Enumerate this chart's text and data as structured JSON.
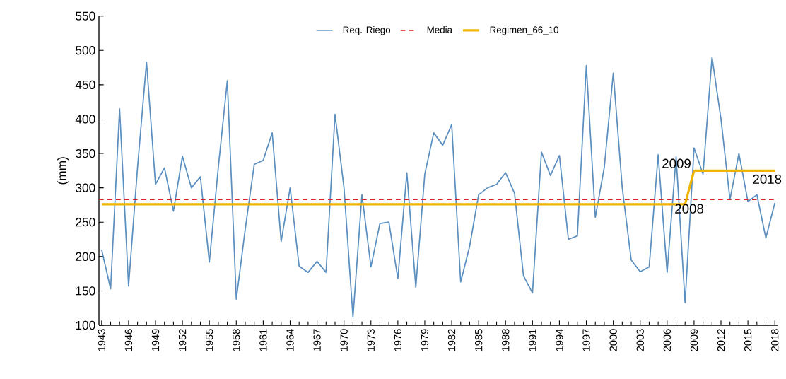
{
  "chart_data": {
    "type": "line",
    "ylabel": "(mm)",
    "x": [
      1943,
      1944,
      1945,
      1946,
      1947,
      1948,
      1949,
      1950,
      1951,
      1952,
      1953,
      1954,
      1955,
      1956,
      1957,
      1958,
      1959,
      1960,
      1961,
      1962,
      1963,
      1964,
      1965,
      1966,
      1967,
      1968,
      1969,
      1970,
      1971,
      1972,
      1973,
      1974,
      1975,
      1976,
      1977,
      1978,
      1979,
      1980,
      1981,
      1982,
      1983,
      1984,
      1985,
      1986,
      1987,
      1988,
      1989,
      1990,
      1991,
      1992,
      1993,
      1994,
      1995,
      1996,
      1997,
      1998,
      1999,
      2000,
      2001,
      2002,
      2003,
      2004,
      2005,
      2006,
      2007,
      2008,
      2009,
      2010,
      2011,
      2012,
      2013,
      2014,
      2015,
      2016,
      2017,
      2018
    ],
    "series": [
      {
        "name": "Req. Riego",
        "color": "#5b8fc0",
        "values": [
          210,
          153,
          415,
          157,
          330,
          483,
          305,
          329,
          266,
          346,
          300,
          316,
          192,
          330,
          456,
          138,
          240,
          334,
          340,
          380,
          222,
          300,
          186,
          177,
          193,
          177,
          407,
          300,
          112,
          290,
          185,
          248,
          250,
          168,
          322,
          155,
          320,
          380,
          362,
          392,
          163,
          215,
          290,
          300,
          305,
          322,
          292,
          172,
          147,
          352,
          318,
          347,
          225,
          230,
          478,
          257,
          330,
          467,
          300,
          195,
          178,
          185,
          348,
          177,
          345,
          133,
          358,
          320,
          490,
          400,
          283,
          350,
          280,
          290,
          227,
          278
        ]
      },
      {
        "name": "Regimen_66_10",
        "color": "#f0b400",
        "x": [
          1943,
          2008,
          2009,
          2018
        ],
        "values": [
          276,
          276,
          325,
          325
        ]
      }
    ],
    "ref_lines": [
      {
        "axis": "y",
        "value": 283,
        "label": "Media",
        "color": "#d9202a",
        "line_style": "dashed"
      }
    ],
    "annotations": [
      {
        "text": "2009",
        "x": 2009,
        "y": 325
      },
      {
        "text": "2008",
        "x": 2008,
        "y": 276
      },
      {
        "text": "2018",
        "x": 2018,
        "y": 325
      }
    ],
    "xlim": [
      1943,
      2018
    ],
    "ylim": [
      100,
      550
    ],
    "xticks": [
      1943,
      1946,
      1949,
      1952,
      1955,
      1958,
      1961,
      1964,
      1967,
      1970,
      1973,
      1976,
      1979,
      1982,
      1985,
      1988,
      1991,
      1994,
      1997,
      2000,
      2003,
      2006,
      2009,
      2012,
      2015,
      2018
    ],
    "yticks": [
      100,
      150,
      200,
      250,
      300,
      350,
      400,
      450,
      500,
      550
    ],
    "grid": false,
    "legend": "top",
    "marker": "none",
    "line_style": "solid"
  }
}
